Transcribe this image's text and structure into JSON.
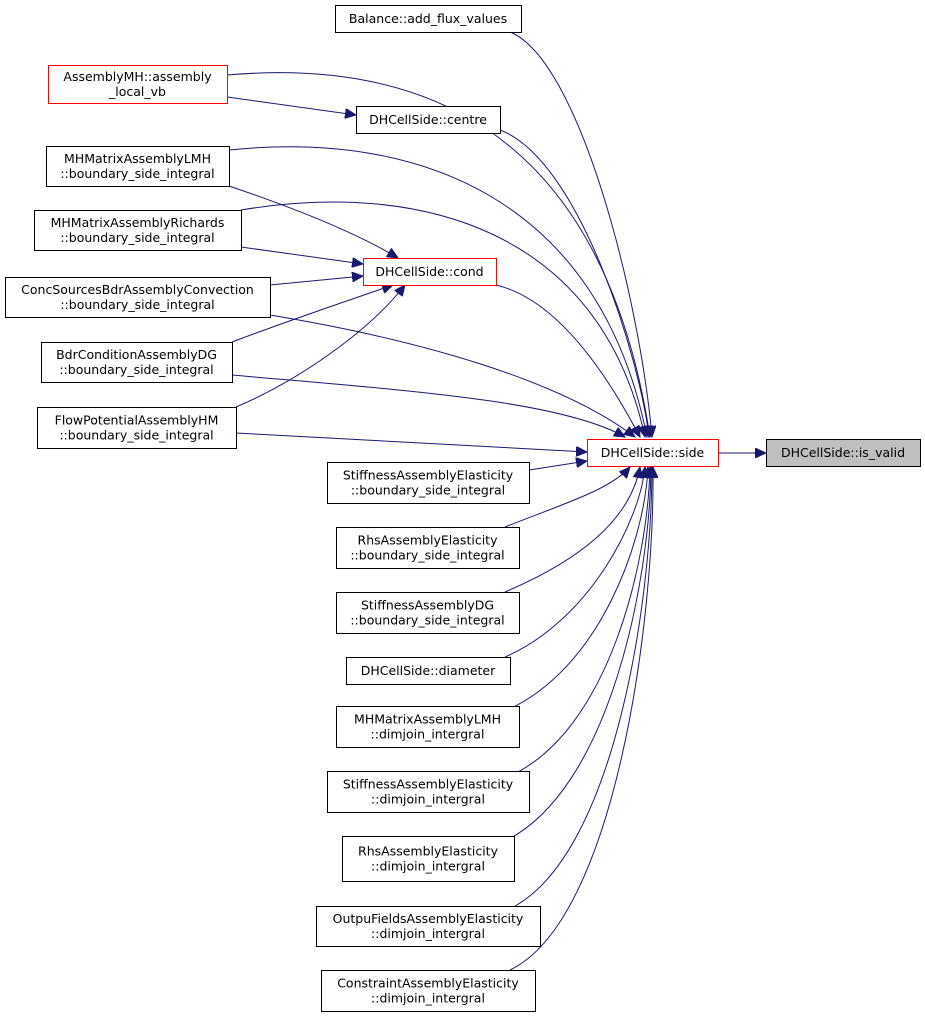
{
  "nodes": [
    {
      "lines": [
        "Balance::add_flux_values"
      ]
    },
    {
      "lines": [
        "AssemblyMH::assembly",
        "_local_vb"
      ]
    },
    {
      "lines": [
        "DHCellSide::centre"
      ]
    },
    {
      "lines": [
        "MHMatrixAssemblyLMH",
        "::boundary_side_integral"
      ]
    },
    {
      "lines": [
        "MHMatrixAssemblyRichards",
        "::boundary_side_integral"
      ]
    },
    {
      "lines": [
        "DHCellSide::cond"
      ]
    },
    {
      "lines": [
        "ConcSourcesBdrAssemblyConvection",
        "::boundary_side_integral"
      ]
    },
    {
      "lines": [
        "BdrConditionAssemblyDG",
        "::boundary_side_integral"
      ]
    },
    {
      "lines": [
        "FlowPotentialAssemblyHM",
        "::boundary_side_integral"
      ]
    },
    {
      "lines": [
        "DHCellSide::side"
      ]
    },
    {
      "lines": [
        "DHCellSide::is_valid"
      ]
    },
    {
      "lines": [
        "StiffnessAssemblyElasticity",
        "::boundary_side_integral"
      ]
    },
    {
      "lines": [
        "RhsAssemblyElasticity",
        "::boundary_side_integral"
      ]
    },
    {
      "lines": [
        "StiffnessAssemblyDG",
        "::boundary_side_integral"
      ]
    },
    {
      "lines": [
        "DHCellSide::diameter"
      ]
    },
    {
      "lines": [
        "MHMatrixAssemblyLMH",
        "::dimjoin_intergral"
      ]
    },
    {
      "lines": [
        "StiffnessAssemblyElasticity",
        "::dimjoin_intergral"
      ]
    },
    {
      "lines": [
        "RhsAssemblyElasticity",
        "::dimjoin_intergral"
      ]
    },
    {
      "lines": [
        "OutpuFieldsAssemblyElasticity",
        "::dimjoin_intergral"
      ]
    },
    {
      "lines": [
        "ConstraintAssemblyElasticity",
        "::dimjoin_intergral"
      ]
    }
  ]
}
